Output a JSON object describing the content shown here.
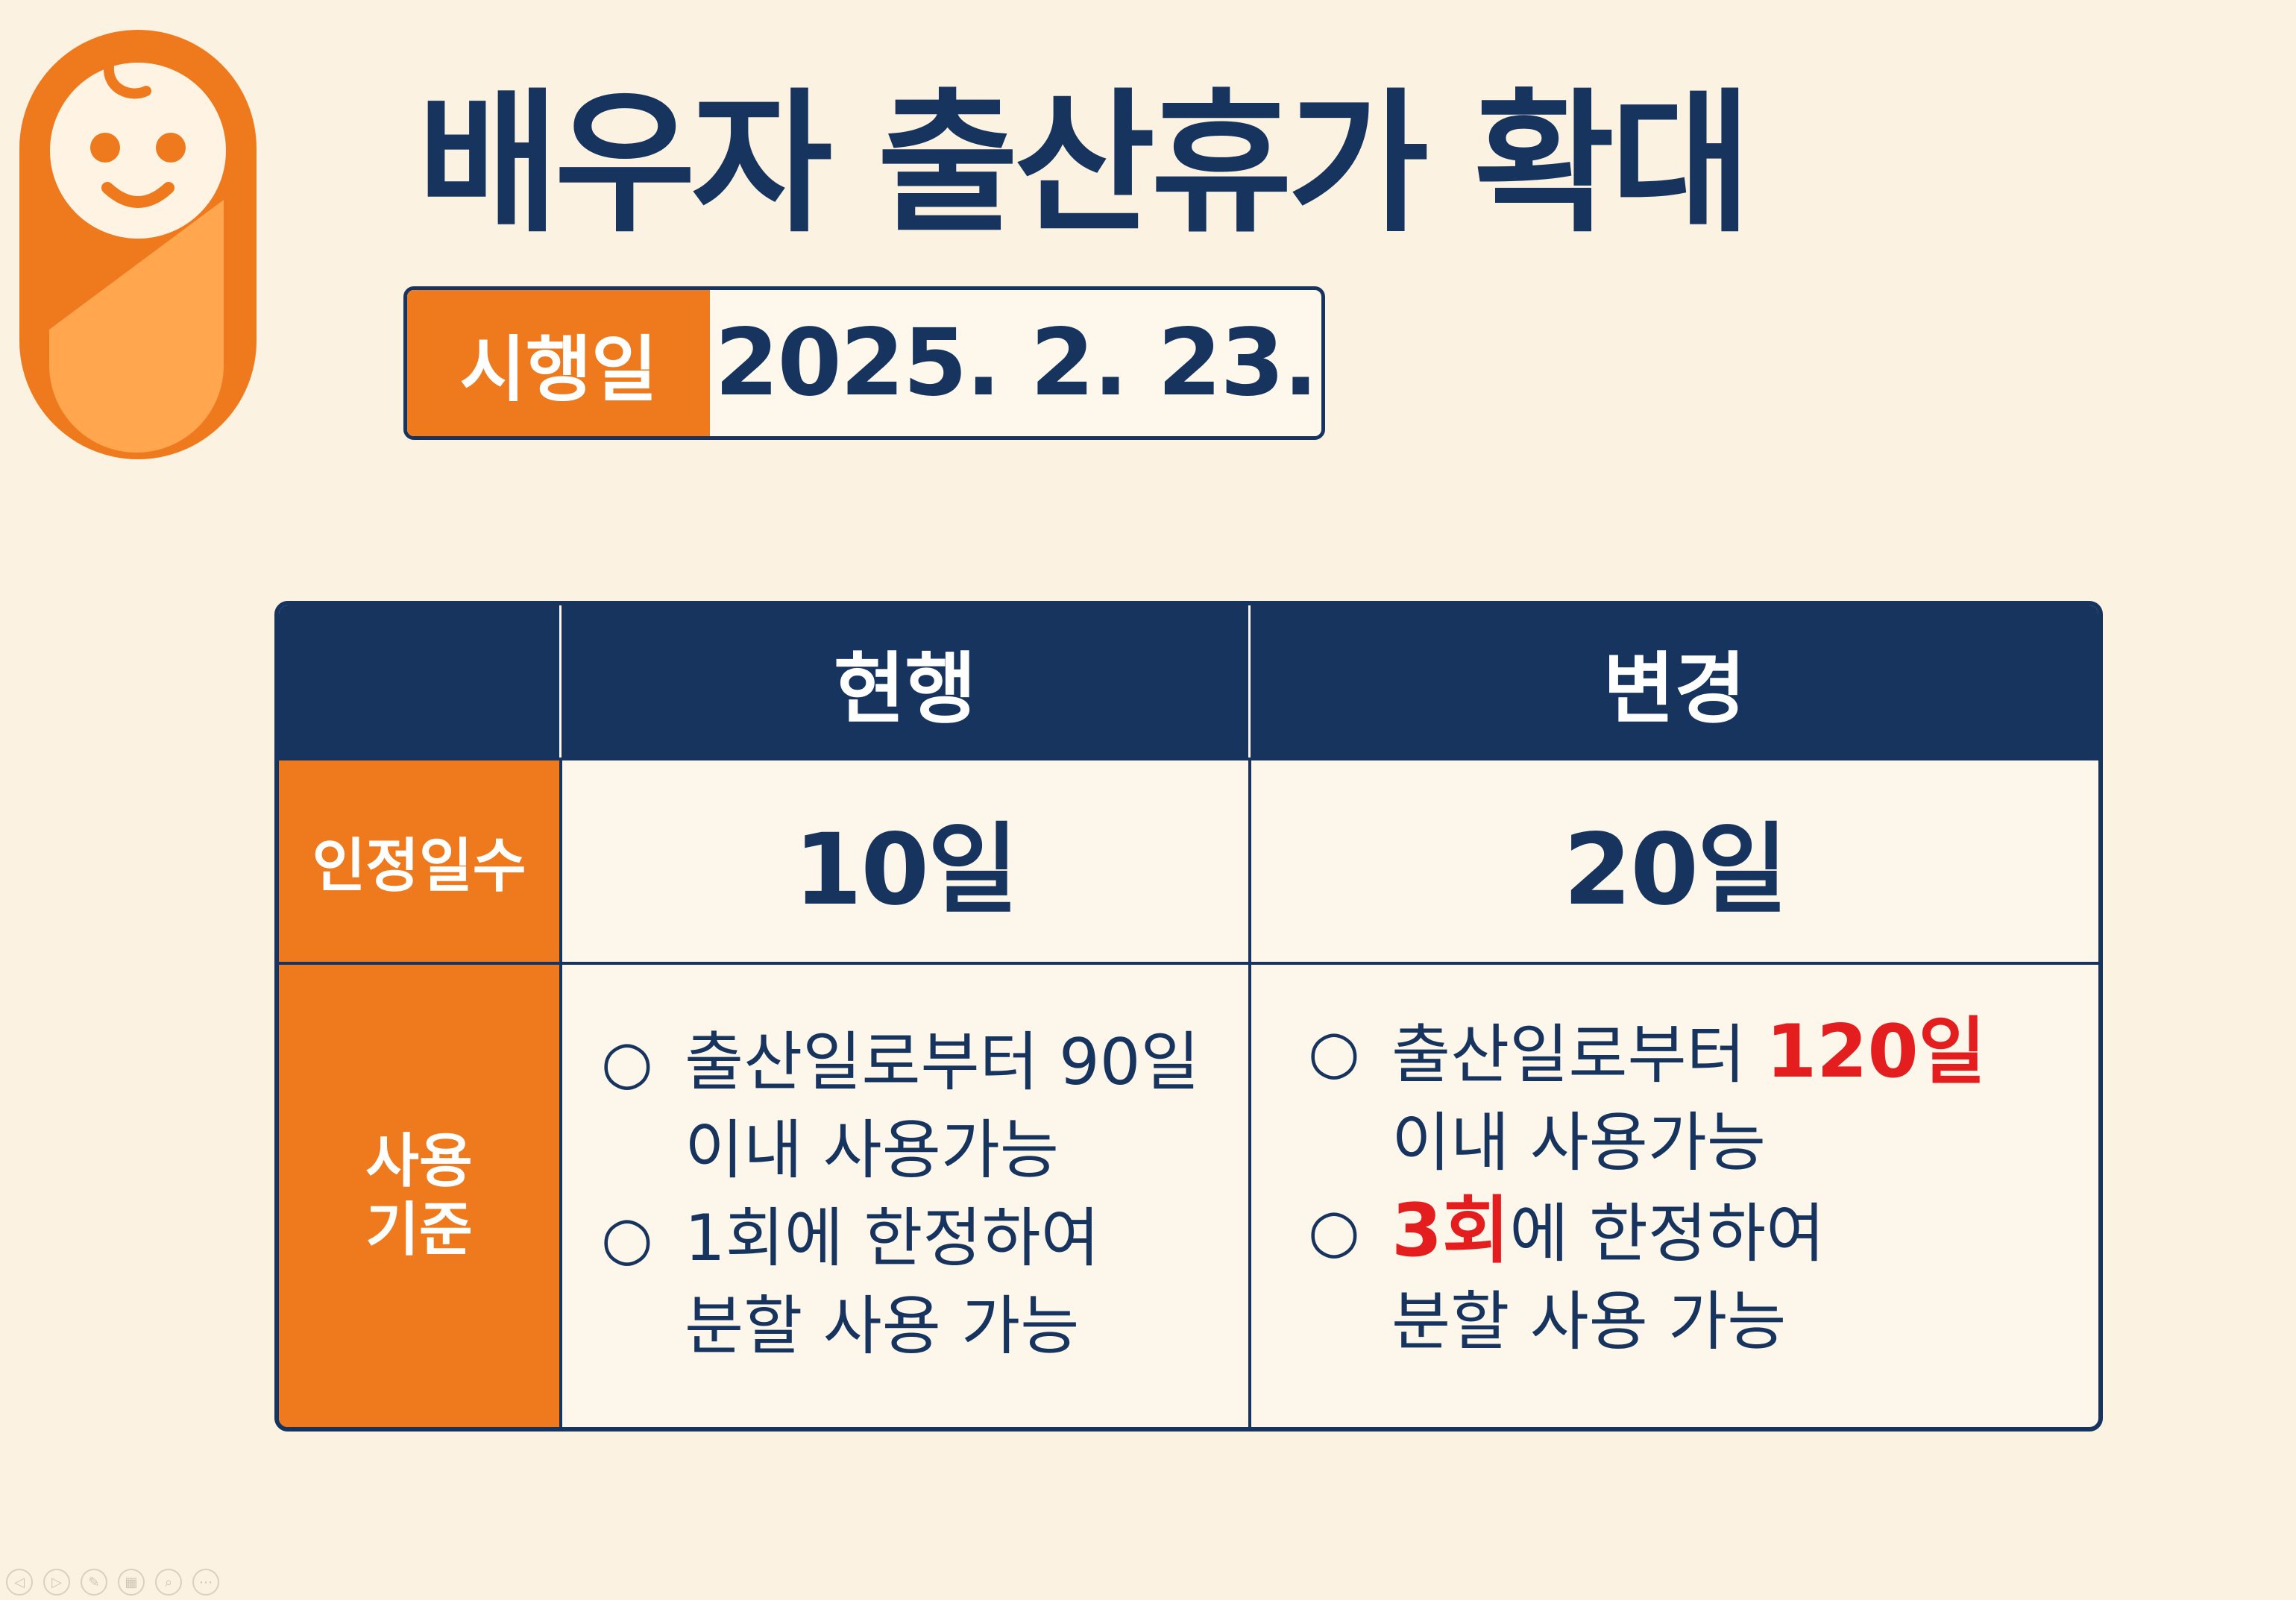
{
  "title": "배우자 출산휴가 확대",
  "effective": {
    "label": "시행일",
    "date": "2025. 2. 23."
  },
  "table": {
    "headers": [
      "",
      "현행",
      "변경"
    ],
    "rows": {
      "days": {
        "label": "인정일수",
        "current": "10일",
        "changed": "20일"
      },
      "usage": {
        "label_line1": "사용",
        "label_line2": "기준",
        "bullet": "○",
        "current": [
          [
            "출산일로부터 90일",
            "이내 사용가능"
          ],
          [
            "1회에 한정하여",
            "분할 사용 가능"
          ]
        ],
        "changed": {
          "item1_line1_prefix": "출산일로부터 ",
          "item1_line1_highlight": "120일",
          "item1_line2": "이내 사용가능",
          "item2_line1_highlight": "3회",
          "item2_line1_suffix": "에 한정하여",
          "item2_line2": "분할 사용 가능"
        }
      }
    }
  },
  "colors": {
    "navy": "#17345f",
    "orange": "#ef7a1e",
    "background": "#fcf2e2",
    "highlight": "#e41e1e"
  },
  "icons": {
    "logo": "swaddled-baby-icon",
    "controls": [
      "prev-slide-icon",
      "next-slide-icon",
      "pen-icon",
      "slides-grid-icon",
      "zoom-icon",
      "more-icon"
    ]
  }
}
